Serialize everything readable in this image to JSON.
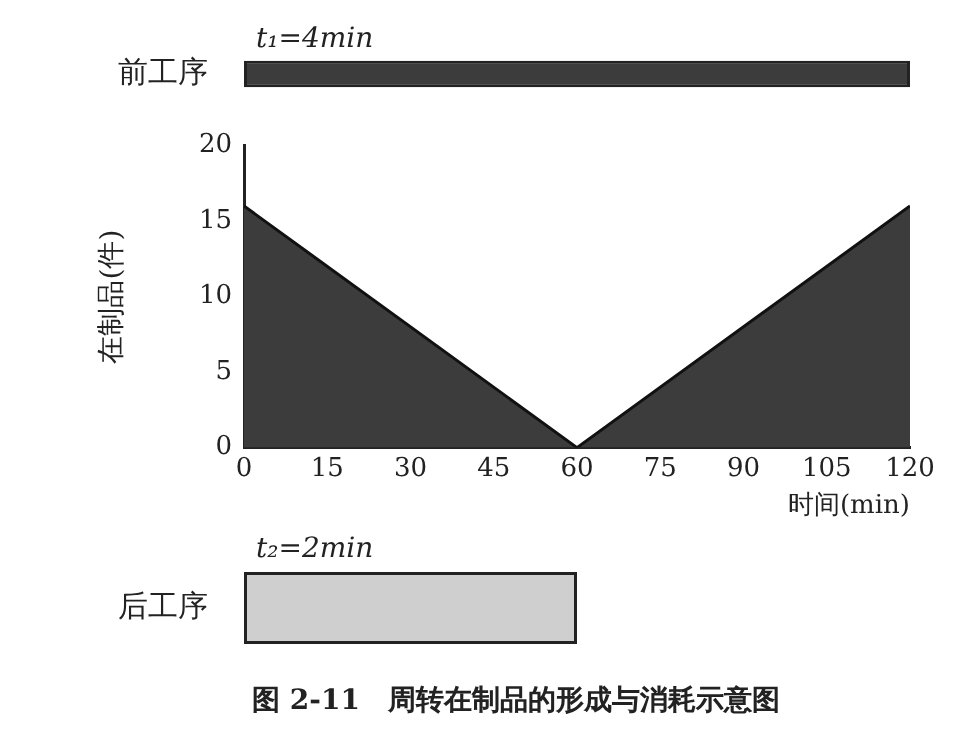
{
  "chart_data": [
    {
      "type": "bar",
      "orientation": "horizontal",
      "categories": [
        "前工序"
      ],
      "values": [
        120
      ],
      "color": "#3c3c3c",
      "xlim": [
        0,
        120
      ],
      "tick_labels": "y",
      "grid": false,
      "legend": false,
      "annotations": [
        "t₁=4min"
      ]
    },
    {
      "type": "area",
      "x": [
        0,
        60,
        120
      ],
      "values": [
        16,
        0,
        16
      ],
      "color": "#3c3c3c",
      "xlim": [
        0,
        120
      ],
      "xticks": [
        0,
        15,
        30,
        45,
        60,
        75,
        90,
        105,
        120
      ],
      "ylim": [
        0,
        20
      ],
      "yticks": [
        0,
        5,
        10,
        15,
        20
      ],
      "xlabel": "时间(min)",
      "ylabel": "在制品(件)",
      "grid": false,
      "legend": false
    },
    {
      "type": "bar",
      "orientation": "horizontal",
      "categories": [
        "后工序"
      ],
      "values": [
        60
      ],
      "color": "#cfcfcf",
      "xlim": [
        0,
        120
      ],
      "tick_labels": "y",
      "grid": false,
      "legend": false,
      "annotations": [
        "t₂=2min",
        "图 2-11　周转在制品的形成与消耗示意图"
      ]
    }
  ]
}
